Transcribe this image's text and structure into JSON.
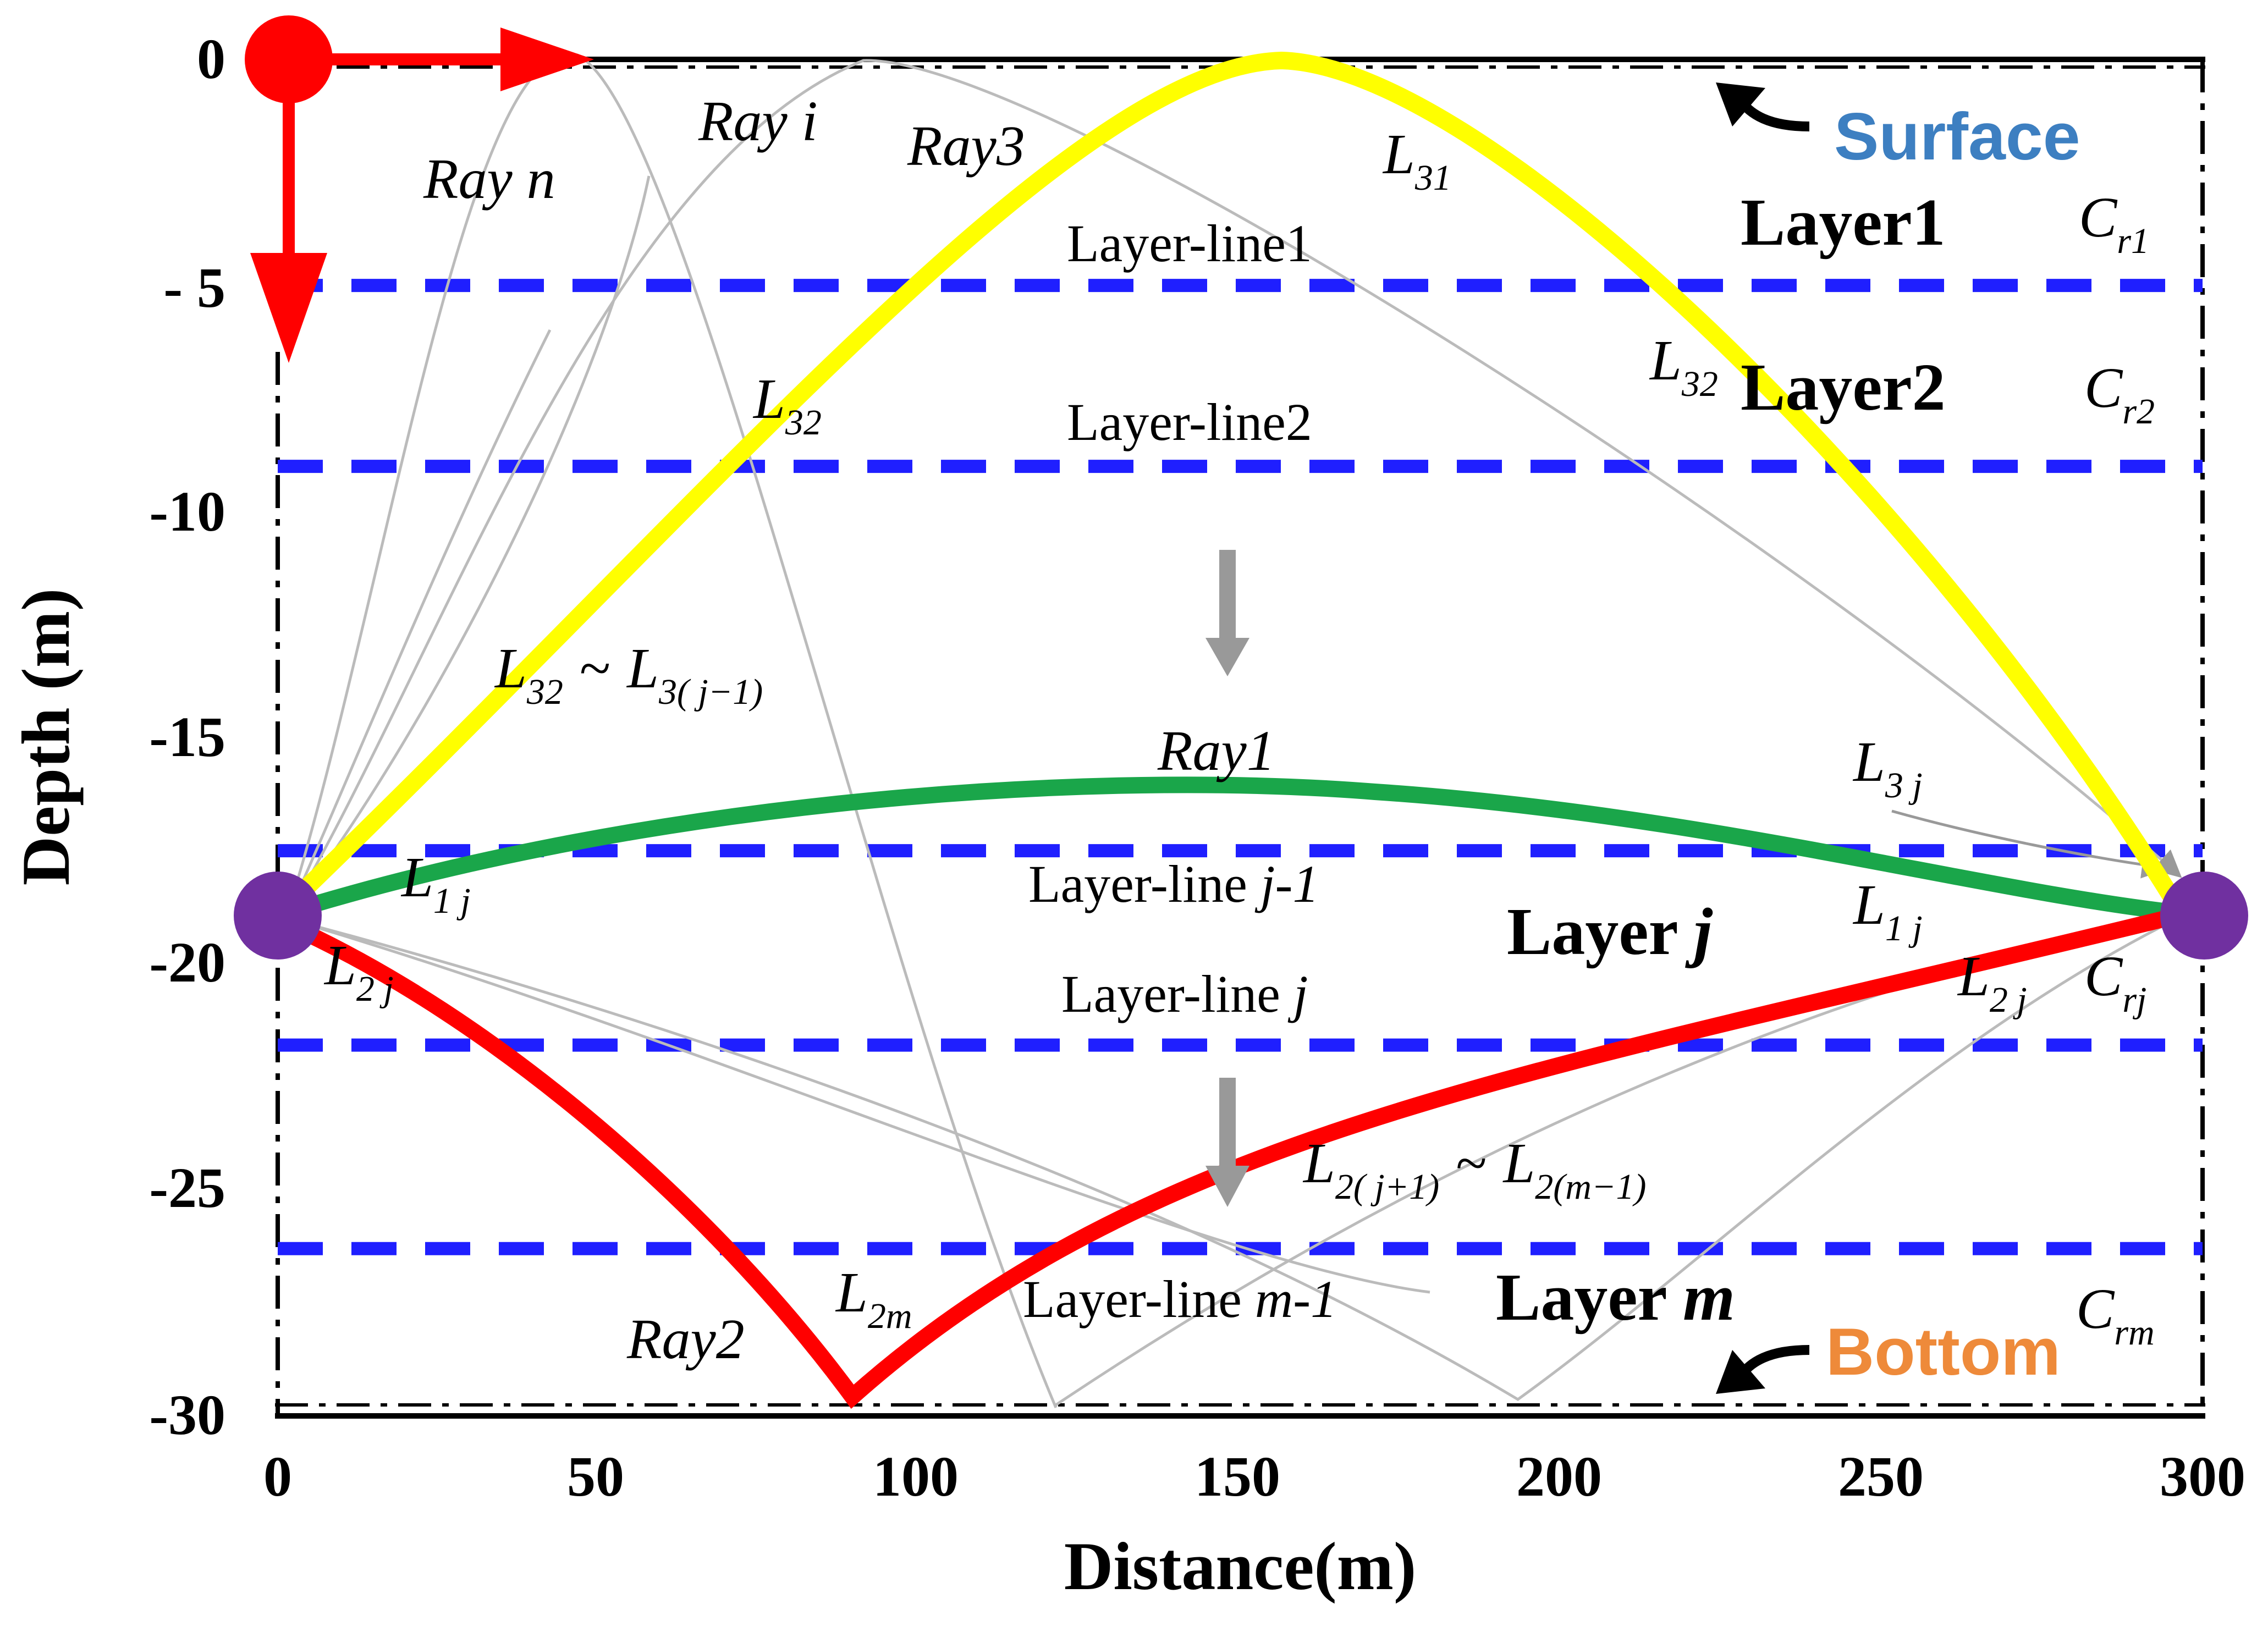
{
  "axes": {
    "x_title": "Distance(m)",
    "y_title": "Depth (m)",
    "x_ticks": [
      "0",
      "50",
      "100",
      "150",
      "200",
      "250",
      "300"
    ],
    "y_ticks": [
      "0",
      "- 5",
      "-10",
      "-15",
      "-20",
      "-25",
      "-30"
    ],
    "x_range": [
      0,
      300
    ],
    "y_range": [
      -30,
      0
    ]
  },
  "boundaries": {
    "surface": "Surface",
    "bottom": "Bottom",
    "surface_color": "#3d7fc1",
    "bottom_color": "#ee8a3a"
  },
  "layer_lines": {
    "line1": "Layer-line1",
    "line2": "Layer-line2",
    "line_j_minus_1_prefix": "Layer-line ",
    "line_j_minus_1_var": "j-1",
    "line_j_prefix": "Layer-line ",
    "line_j_var": "j",
    "line_m_minus_1_prefix": "Layer-line ",
    "line_m_minus_1_var": "m-1",
    "depths": [
      -5,
      -9,
      -17.5,
      -21.8,
      -26.3
    ],
    "color": "#1f1fff"
  },
  "layers": {
    "layer1": "Layer1",
    "layer2": "Layer2",
    "layer_j_prefix": "Layer ",
    "layer_j_var": "j",
    "layer_m_prefix": "Layer ",
    "layer_m_var": "m"
  },
  "rays": {
    "ray_n": "Ray n",
    "ray_i": "Ray i",
    "ray3": "Ray3",
    "ray1": "Ray1",
    "ray2": "Ray2",
    "ray3_color": "#ffff00",
    "ray1_color": "#1aa64a",
    "ray2_color": "#ff0000",
    "other_color": "#bbbbbb"
  },
  "segments": {
    "L31": {
      "main": "L",
      "sub": "31"
    },
    "L32_left": {
      "main": "L",
      "sub": "32"
    },
    "L32_right": {
      "main": "L",
      "sub": "32"
    },
    "L32_range": {
      "main": "L",
      "sub": "32",
      "tilde": "~",
      "main2": "L",
      "sub2": "3( j−1)"
    },
    "L3j": {
      "main": "L",
      "sub": "3 j"
    },
    "L1j_left": {
      "main": "L",
      "sub": "1 j"
    },
    "L1j_right": {
      "main": "L",
      "sub": "1 j"
    },
    "L2j_left": {
      "main": "L",
      "sub": "2 j"
    },
    "L2j_right": {
      "main": "L",
      "sub": "2 j"
    },
    "L2_range": {
      "main": "L",
      "sub": "2( j+1)",
      "tilde": "~",
      "main2": "L",
      "sub2": "2(m−1)"
    },
    "L2m": {
      "main": "L",
      "sub": "2m"
    }
  },
  "speeds": {
    "cr1": {
      "main": "C",
      "sub": "r1"
    },
    "cr2": {
      "main": "C",
      "sub": "r2"
    },
    "crj": {
      "main": "C",
      "sub": "rj"
    },
    "crm": {
      "main": "C",
      "sub": "rm"
    }
  },
  "markers": {
    "source_color": "#7030a0",
    "origin_color": "#ff0000",
    "source_depth": -19,
    "receiver_distance": 300
  }
}
